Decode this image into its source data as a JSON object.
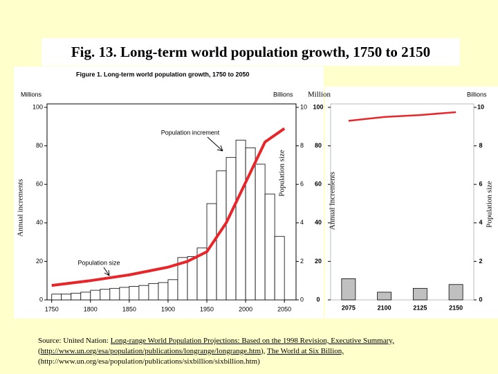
{
  "title": "Fig. 13. Long-term world population growth, 1750 to 2150",
  "chart_data": [
    {
      "type": "histogram",
      "title": "Figure 1. Long-term world population growth, 1750 to 2050",
      "y_unit": "Millions",
      "y2_unit": "Billions",
      "y_label": "Annual increments",
      "y2_label": "Population size",
      "xlim": [
        1744,
        2065
      ],
      "xticks": [
        1750,
        1800,
        1850,
        1900,
        1950,
        2000,
        2050
      ],
      "ylim": [
        0,
        100
      ],
      "yticks": [
        0,
        20,
        40,
        60,
        80,
        100
      ],
      "y2lim": [
        0,
        10
      ],
      "y2ticks": [
        0,
        2,
        4,
        6,
        8,
        10
      ],
      "series": [
        {
          "name": "Population increment",
          "kind": "bars",
          "color": "#ffffff",
          "bins": [
            1750,
            1762.5,
            1775,
            1787.5,
            1800,
            1812.5,
            1825,
            1837.5,
            1850,
            1862.5,
            1875,
            1887.5,
            1900,
            1912.5,
            1925,
            1937.5,
            1950,
            1962.5,
            1975,
            1987.5,
            2000,
            2012.5,
            2025,
            2037.5,
            2050
          ],
          "values": [
            3,
            3,
            3.5,
            4,
            5,
            5.5,
            6,
            6.5,
            7,
            7.5,
            8.5,
            9,
            10.5,
            22,
            22.5,
            27,
            50,
            67,
            74,
            83,
            79,
            70.5,
            55,
            33
          ]
        },
        {
          "name": "Population size",
          "kind": "line",
          "axis": "y2",
          "color": "#e8262a",
          "x": [
            1750,
            1800,
            1850,
            1900,
            1925,
            1950,
            1975,
            2000,
            2025,
            2050
          ],
          "values": [
            0.75,
            1.0,
            1.3,
            1.7,
            2.0,
            2.5,
            4.0,
            6.1,
            8.2,
            8.9
          ]
        }
      ]
    },
    {
      "type": "bar",
      "y_unit": "Million",
      "y2_unit": "Billions",
      "y_label": "Annual Increments",
      "y2_label": "Population size",
      "categories": [
        "2075",
        "2100",
        "2125",
        "2150"
      ],
      "ylim": [
        0,
        100
      ],
      "yticks": [
        0,
        20,
        40,
        60,
        80,
        100
      ],
      "y2lim": [
        0,
        10
      ],
      "y2ticks": [
        0,
        2,
        4,
        6,
        8,
        10
      ],
      "series": [
        {
          "kind": "bars",
          "color": "#c0c0c0",
          "values": [
            11,
            4,
            6,
            8
          ]
        },
        {
          "kind": "line",
          "axis": "y2",
          "color": "#e8262a",
          "values": [
            9.3,
            9.5,
            9.6,
            9.75
          ]
        }
      ]
    }
  ],
  "source": [
    "Source: United Nation: ",
    "Long-range World Population Projections: Based on the 1998 Revision, Executive Summary,",
    "(",
    "http://www.un.org/esa/population/publications/longrange/longrange.htm",
    "), ",
    "The World at Six Billion,",
    "(http://www.un.org/esa/population/publications/sixbillion/sixbillion.htm)"
  ]
}
